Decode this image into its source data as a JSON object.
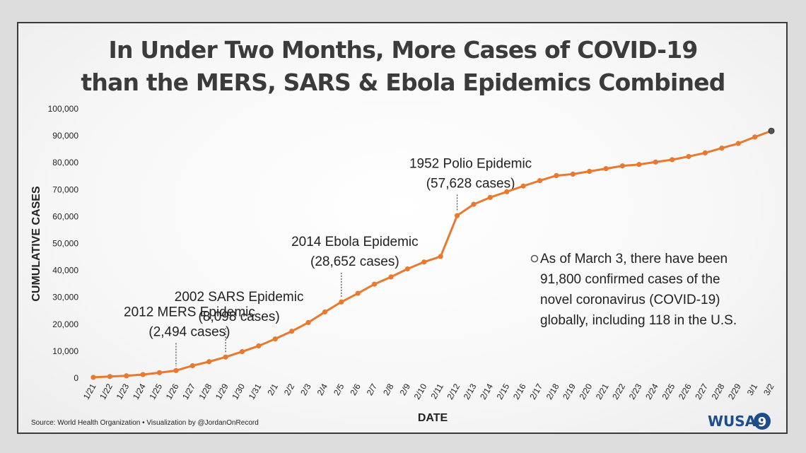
{
  "title_lines": [
    "In Under Two Months, More Cases of COVID-19",
    "than the MERS, SARS & Ebola Epidemics Combined"
  ],
  "source": "Source: World Health Organization • Visualization by @JordanOnRecord",
  "logo": {
    "text": "WUSA",
    "mark": "9"
  },
  "note_lines": [
    "As of March 3, there have been",
    "91,800 confirmed cases of the",
    "novel coronavirus (COVID-19)",
    "globally, including 118 in the U.S."
  ],
  "colors": {
    "line": "#e8792e",
    "last_point": "#555555"
  },
  "chart_data": {
    "type": "line",
    "xlabel": "DATE",
    "ylabel": "CUMULATIVE CASES",
    "ylim": [
      0,
      100000
    ],
    "yticks": [
      0,
      10000,
      20000,
      30000,
      40000,
      50000,
      60000,
      70000,
      80000,
      90000,
      100000
    ],
    "ytick_labels": [
      "0",
      "10,000",
      "20,000",
      "30,000",
      "40,000",
      "50,000",
      "60,000",
      "70,000",
      "80,000",
      "90,000",
      "100,000"
    ],
    "x": [
      "1/21",
      "1/22",
      "1/23",
      "1/24",
      "1/25",
      "1/26",
      "1/27",
      "1/28",
      "1/29",
      "1/30",
      "1/31",
      "2/1",
      "2/2",
      "2/3",
      "2/4",
      "2/5",
      "2/6",
      "2/7",
      "2/8",
      "2/9",
      "2/10",
      "2/11",
      "2/12",
      "2/13",
      "2/14",
      "2/15",
      "2/16",
      "2/17",
      "2/18",
      "2/19",
      "2/20",
      "2/21",
      "2/22",
      "2/23",
      "2/24",
      "2/25",
      "2/26",
      "2/27",
      "2/28",
      "2/29",
      "3/1",
      "3/2"
    ],
    "series": [
      {
        "values": [
          282,
          580,
          845,
          1320,
          2014,
          2800,
          4600,
          6100,
          7818,
          9826,
          11953,
          14557,
          17391,
          20630,
          24554,
          28276,
          31481,
          34886,
          37558,
          40554,
          43103,
          45171,
          60328,
          64543,
          67100,
          69197,
          71329,
          73332,
          75204,
          75748,
          76769,
          77794,
          78811,
          79331,
          80239,
          81109,
          82294,
          83652,
          85403,
          87137,
          89527,
          91800
        ]
      }
    ],
    "annotations": [
      {
        "x": "1/26",
        "label_lines": [
          "2012 MERS Epidemic",
          "(2,494 cases)"
        ],
        "value": 2494
      },
      {
        "x": "1/29",
        "label_lines": [
          "2002 SARS Epidemic",
          "(8,098 cases)"
        ],
        "value": 8098
      },
      {
        "x": "2/5",
        "label_lines": [
          "2014 Ebola Epidemic",
          "(28,652 cases)"
        ],
        "value": 28652
      },
      {
        "x": "2/12",
        "label_lines": [
          "1952 Polio Epidemic",
          "(57,628 cases)"
        ],
        "value": 57628
      }
    ]
  }
}
